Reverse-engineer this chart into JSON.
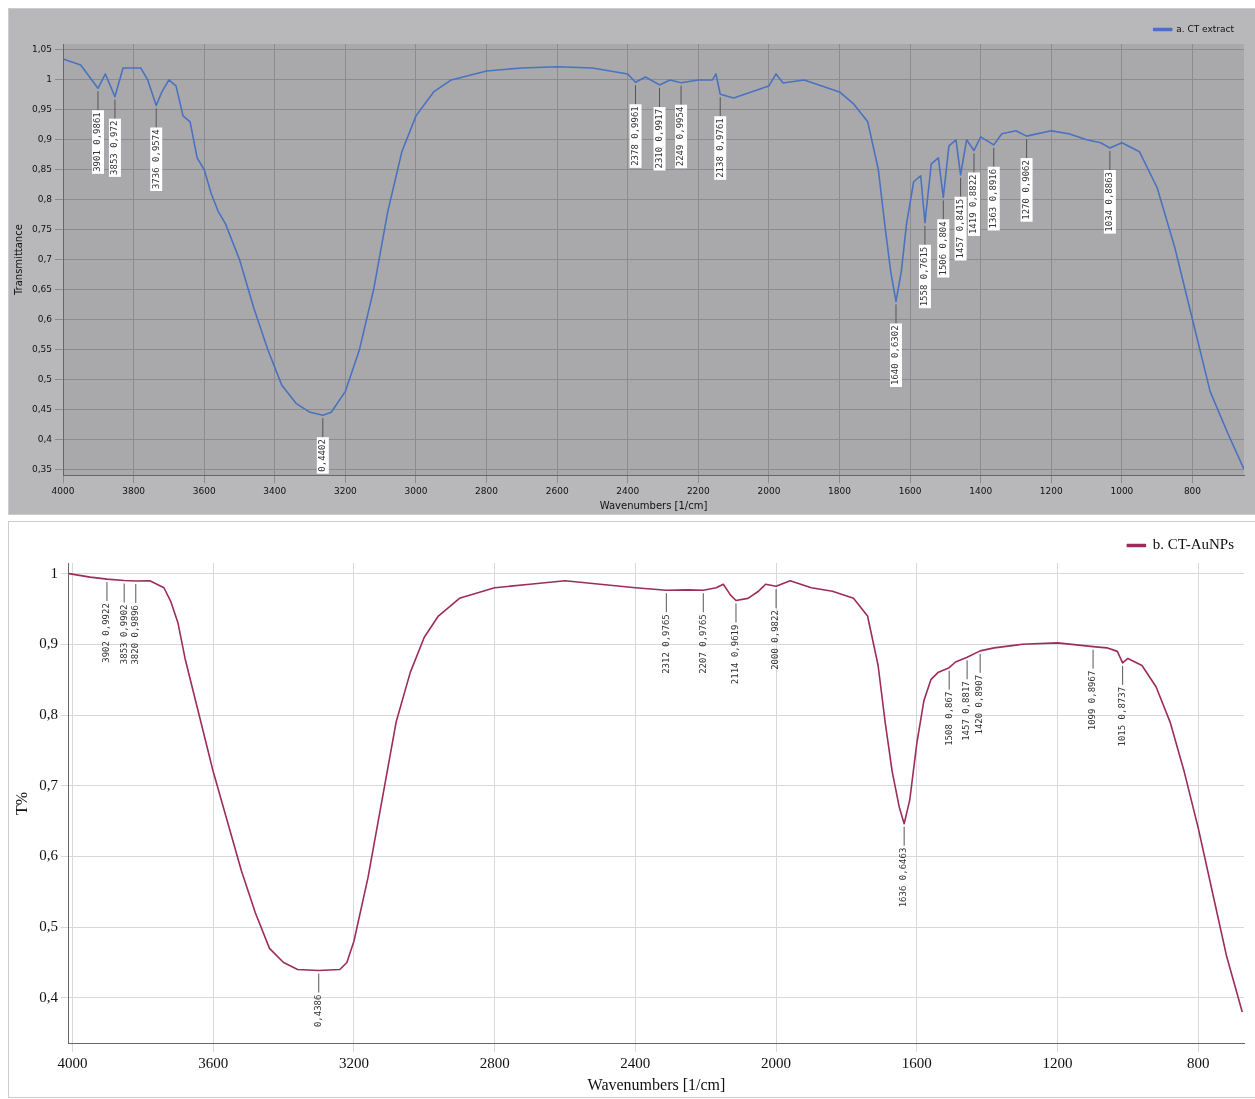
{
  "chart_data": [
    {
      "type": "line",
      "xlabel": "Wavenumbers [1/cm]",
      "ylabel": "Transmittance",
      "legend": "top right",
      "grid": true,
      "marker": "none",
      "line_style": "solid",
      "xlim": [
        4000,
        654
      ],
      "ylim": [
        0.34,
        1.06
      ],
      "xticks": [
        4000,
        3800,
        3600,
        3400,
        3200,
        3000,
        2800,
        2600,
        2400,
        2200,
        2000,
        1800,
        1600,
        1400,
        1200,
        1000,
        800
      ],
      "yticks": [
        {
          "value": 0.35,
          "label": "0,35"
        },
        {
          "value": 0.4,
          "label": "0,4"
        },
        {
          "value": 0.45,
          "label": "0,45"
        },
        {
          "value": 0.5,
          "label": "0,5"
        },
        {
          "value": 0.55,
          "label": "0,55"
        },
        {
          "value": 0.6,
          "label": "0,6"
        },
        {
          "value": 0.65,
          "label": "0,65"
        },
        {
          "value": 0.7,
          "label": "0,7"
        },
        {
          "value": 0.75,
          "label": "0,75"
        },
        {
          "value": 0.8,
          "label": "0,8"
        },
        {
          "value": 0.85,
          "label": "0,85"
        },
        {
          "value": 0.9,
          "label": "0,9"
        },
        {
          "value": 0.95,
          "label": "0,95"
        },
        {
          "value": 1,
          "label": "1"
        },
        {
          "value": 1.05,
          "label": "1,05"
        }
      ],
      "series": [
        {
          "name": "a. CT extract",
          "color": "#4a72c0",
          "x": [
            4000,
            3950,
            3901,
            3880,
            3853,
            3830,
            3800,
            3780,
            3760,
            3736,
            3720,
            3700,
            3680,
            3660,
            3640,
            3620,
            3600,
            3580,
            3560,
            3540,
            3500,
            3460,
            3420,
            3380,
            3340,
            3300,
            3264,
            3240,
            3200,
            3160,
            3120,
            3080,
            3040,
            3000,
            2950,
            2900,
            2800,
            2700,
            2600,
            2500,
            2400,
            2378,
            2350,
            2310,
            2280,
            2249,
            2200,
            2160,
            2150,
            2138,
            2100,
            2050,
            2000,
            1980,
            1960,
            1900,
            1850,
            1800,
            1760,
            1720,
            1690,
            1670,
            1655,
            1640,
            1625,
            1610,
            1590,
            1570,
            1558,
            1540,
            1520,
            1506,
            1490,
            1470,
            1457,
            1440,
            1419,
            1400,
            1363,
            1340,
            1300,
            1270,
            1200,
            1150,
            1100,
            1060,
            1034,
            1000,
            950,
            900,
            850,
            800,
            750,
            700,
            654
          ],
          "values": [
            1.035,
            1.025,
            0.9861,
            1.01,
            0.972,
            1.02,
            1.02,
            1.02,
            1.0,
            0.9574,
            0.98,
            1.0,
            0.99,
            0.94,
            0.93,
            0.87,
            0.85,
            0.81,
            0.78,
            0.76,
            0.7,
            0.62,
            0.55,
            0.49,
            0.46,
            0.445,
            0.4402,
            0.445,
            0.48,
            0.55,
            0.65,
            0.78,
            0.88,
            0.94,
            0.98,
            1.0,
            1.015,
            1.02,
            1.022,
            1.02,
            1.01,
            0.9961,
            1.005,
            0.9917,
            1.0,
            0.9954,
            1.0,
            1.0,
            1.01,
            0.9761,
            0.97,
            0.98,
            0.99,
            1.01,
            0.995,
            1.0,
            0.99,
            0.98,
            0.96,
            0.93,
            0.85,
            0.75,
            0.68,
            0.6302,
            0.68,
            0.76,
            0.83,
            0.84,
            0.7615,
            0.86,
            0.87,
            0.804,
            0.89,
            0.9,
            0.8415,
            0.9,
            0.8822,
            0.905,
            0.8916,
            0.91,
            0.915,
            0.9062,
            0.915,
            0.91,
            0.9,
            0.895,
            0.8863,
            0.895,
            0.88,
            0.82,
            0.72,
            0.6,
            0.48,
            0.41,
            0.35
          ]
        }
      ],
      "annotations": [
        {
          "text": "3901 0,9861",
          "x": 3901,
          "y": 0.9861
        },
        {
          "text": "3853 0,972",
          "x": 3853,
          "y": 0.972
        },
        {
          "text": "3736 0,9574",
          "x": 3736,
          "y": 0.9574
        },
        {
          "text": "0,4402",
          "x": 3264,
          "y": 0.4402
        },
        {
          "text": "2378 0,9961",
          "x": 2378,
          "y": 0.9961
        },
        {
          "text": "2310 0,9917",
          "x": 2310,
          "y": 0.9917
        },
        {
          "text": "2249 0,9954",
          "x": 2249,
          "y": 0.9954
        },
        {
          "text": "2138 0,9761",
          "x": 2138,
          "y": 0.9761
        },
        {
          "text": "1640 0,6302",
          "x": 1640,
          "y": 0.6302
        },
        {
          "text": "1558 0,7615",
          "x": 1558,
          "y": 0.7615
        },
        {
          "text": "1506 0,804",
          "x": 1506,
          "y": 0.804
        },
        {
          "text": "1457 0,8415",
          "x": 1457,
          "y": 0.8415
        },
        {
          "text": "1419 0,8822",
          "x": 1419,
          "y": 0.8822
        },
        {
          "text": "1363 0,8916",
          "x": 1363,
          "y": 0.8916
        },
        {
          "text": "1270 0,9062",
          "x": 1270,
          "y": 0.9062
        },
        {
          "text": "1034 0,8863",
          "x": 1034,
          "y": 0.8863
        }
      ]
    },
    {
      "type": "line",
      "xlabel": "Wavenumbers [1/cm]",
      "ylabel": "T%",
      "legend": "top right",
      "grid": true,
      "marker": "none",
      "line_style": "solid",
      "xlim": [
        4010,
        670
      ],
      "ylim": [
        0.335,
        1.015
      ],
      "xticks": [
        4000,
        3600,
        3200,
        2800,
        2400,
        2000,
        1600,
        1200,
        800
      ],
      "yticks": [
        {
          "value": 0.4,
          "label": "0,4"
        },
        {
          "value": 0.5,
          "label": "0,5"
        },
        {
          "value": 0.6,
          "label": "0,6"
        },
        {
          "value": 0.7,
          "label": "0,7"
        },
        {
          "value": 0.8,
          "label": "0,8"
        },
        {
          "value": 0.9,
          "label": "0,9"
        },
        {
          "value": 1,
          "label": "1"
        }
      ],
      "series": [
        {
          "name": "b. CT-AuNPs",
          "color": "#9c2d5a",
          "x": [
            4010,
            3950,
            3902,
            3853,
            3820,
            3780,
            3740,
            3720,
            3700,
            3680,
            3640,
            3600,
            3560,
            3520,
            3480,
            3440,
            3400,
            3360,
            3300,
            3240,
            3220,
            3200,
            3160,
            3120,
            3080,
            3040,
            3000,
            2960,
            2900,
            2800,
            2700,
            2600,
            2500,
            2400,
            2312,
            2250,
            2207,
            2170,
            2150,
            2130,
            2114,
            2080,
            2050,
            2030,
            2000,
            1960,
            1900,
            1840,
            1780,
            1740,
            1710,
            1690,
            1670,
            1650,
            1636,
            1620,
            1600,
            1580,
            1560,
            1540,
            1508,
            1490,
            1457,
            1420,
            1380,
            1300,
            1200,
            1099,
            1060,
            1030,
            1015,
            1000,
            960,
            920,
            880,
            840,
            800,
            760,
            720,
            675
          ],
          "values": [
            1.0,
            0.995,
            0.9922,
            0.9902,
            0.9896,
            0.99,
            0.98,
            0.96,
            0.93,
            0.88,
            0.8,
            0.72,
            0.65,
            0.58,
            0.52,
            0.47,
            0.45,
            0.44,
            0.4386,
            0.44,
            0.45,
            0.48,
            0.57,
            0.68,
            0.79,
            0.86,
            0.91,
            0.94,
            0.965,
            0.98,
            0.985,
            0.99,
            0.985,
            0.98,
            0.9765,
            0.977,
            0.9765,
            0.98,
            0.985,
            0.97,
            0.9619,
            0.965,
            0.975,
            0.985,
            0.9822,
            0.99,
            0.98,
            0.975,
            0.965,
            0.94,
            0.87,
            0.79,
            0.72,
            0.67,
            0.6463,
            0.68,
            0.76,
            0.82,
            0.85,
            0.86,
            0.867,
            0.875,
            0.8817,
            0.8907,
            0.895,
            0.9,
            0.902,
            0.8967,
            0.895,
            0.89,
            0.8737,
            0.88,
            0.87,
            0.84,
            0.79,
            0.72,
            0.64,
            0.55,
            0.46,
            0.38
          ]
        }
      ],
      "annotations": [
        {
          "text": "3902 0,9922",
          "x": 3902,
          "y": 0.9922
        },
        {
          "text": "3853 0,9902",
          "x": 3853,
          "y": 0.9902
        },
        {
          "text": "3820 0,9896",
          "x": 3820,
          "y": 0.9896
        },
        {
          "text": "0,4386",
          "x": 3300,
          "y": 0.4386
        },
        {
          "text": "2312 0,9765",
          "x": 2312,
          "y": 0.9765
        },
        {
          "text": "2207 0,9765",
          "x": 2207,
          "y": 0.9765
        },
        {
          "text": "2114 0,9619",
          "x": 2114,
          "y": 0.9619
        },
        {
          "text": "2000 0,9822",
          "x": 2000,
          "y": 0.9822
        },
        {
          "text": "1636 0,6463",
          "x": 1636,
          "y": 0.6463
        },
        {
          "text": "1508 0,867",
          "x": 1508,
          "y": 0.867
        },
        {
          "text": "1457 0,8817",
          "x": 1457,
          "y": 0.8817
        },
        {
          "text": "1420 0,8907",
          "x": 1420,
          "y": 0.8907
        },
        {
          "text": "1099 0,8967",
          "x": 1099,
          "y": 0.8967
        },
        {
          "text": "1015 0,8737",
          "x": 1015,
          "y": 0.8737
        }
      ]
    }
  ]
}
